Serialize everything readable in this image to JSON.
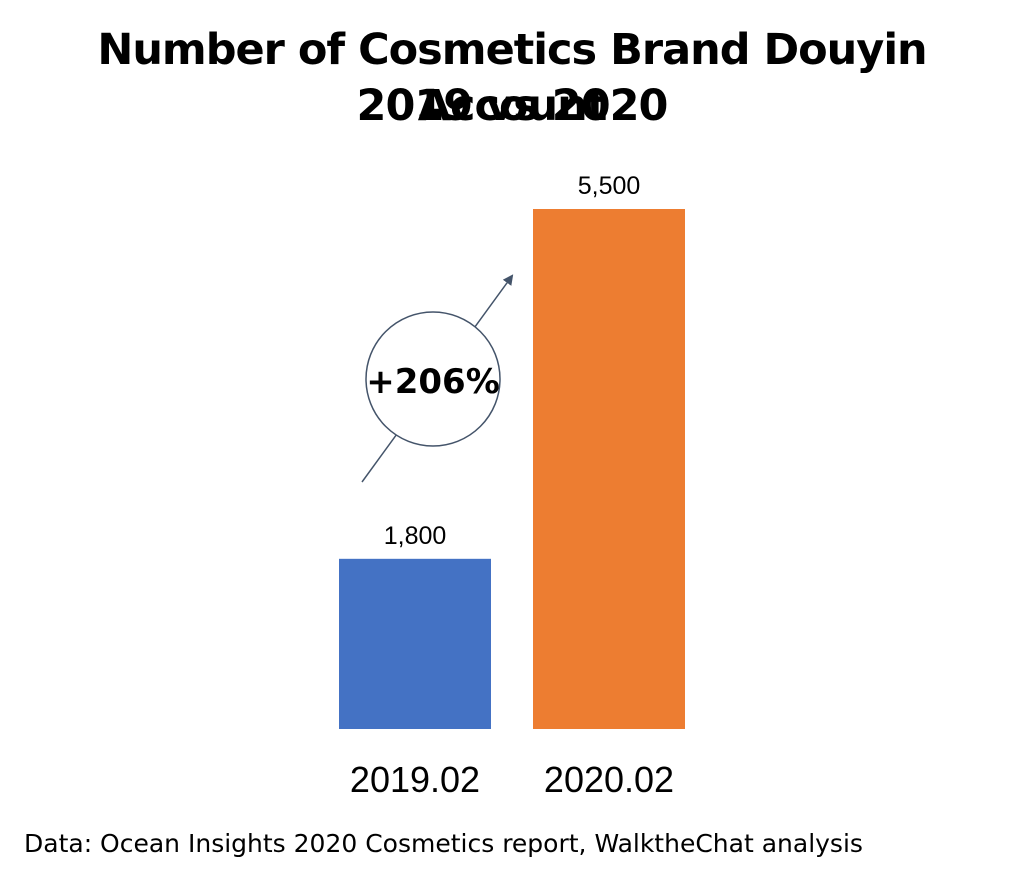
{
  "chart_data": {
    "type": "bar",
    "title": "Number of Cosmetics Brand Douyin Account",
    "subtitle": "2019 vs 2020",
    "categories": [
      "2019.02",
      "2020.02"
    ],
    "values": [
      1800,
      5500
    ],
    "value_labels": [
      "1,800",
      "5,500"
    ],
    "ylim": [
      0,
      5500
    ],
    "grid": false,
    "legend": "none",
    "annotation": "+206%",
    "colors": [
      "#4472C4",
      "#ED7D31"
    ],
    "xlabel": "",
    "ylabel": ""
  },
  "source_note": "Data: Ocean Insights 2020 Cosmetics report, WalktheChat analysis"
}
